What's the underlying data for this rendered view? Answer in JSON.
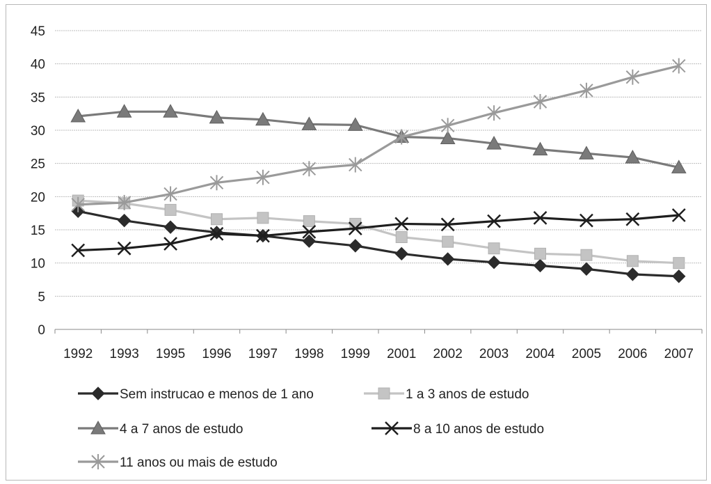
{
  "chart_data": {
    "type": "line",
    "title": "",
    "xlabel": "",
    "ylabel": "",
    "categories": [
      "1992",
      "1993",
      "1995",
      "1996",
      "1997",
      "1998",
      "1999",
      "2001",
      "2002",
      "2003",
      "2004",
      "2005",
      "2006",
      "2007"
    ],
    "ylim": [
      0,
      45
    ],
    "yticks": [
      "0",
      "5",
      "10",
      "15",
      "20",
      "25",
      "30",
      "35",
      "40",
      "45"
    ],
    "grid": true,
    "legend_position": "bottom",
    "series": [
      {
        "name": "Sem instrucao e menos de 1 ano",
        "marker": "diamond",
        "color": "#2b2b2b",
        "values": [
          17.8,
          16.4,
          15.4,
          14.6,
          14.1,
          13.3,
          12.6,
          11.4,
          10.6,
          10.1,
          9.6,
          9.1,
          8.3,
          8.0
        ]
      },
      {
        "name": "1 a 3 anos de estudo",
        "marker": "square",
        "color": "#c4c4c4",
        "values": [
          19.4,
          19.0,
          18.0,
          16.6,
          16.8,
          16.3,
          15.9,
          13.9,
          13.2,
          12.2,
          11.4,
          11.2,
          10.3,
          10.0
        ]
      },
      {
        "name": "4 a 7 anos de estudo",
        "marker": "triangle",
        "color": "#7a7a7a",
        "values": [
          32.1,
          32.8,
          32.8,
          31.9,
          31.6,
          30.9,
          30.8,
          29.0,
          28.8,
          28.0,
          27.1,
          26.5,
          25.9,
          24.4
        ]
      },
      {
        "name": "8 a 10 anos de estudo",
        "marker": "x",
        "color": "#1e1e1e",
        "values": [
          11.9,
          12.2,
          12.9,
          14.4,
          14.1,
          14.7,
          15.2,
          15.9,
          15.8,
          16.3,
          16.8,
          16.4,
          16.6,
          17.2
        ]
      },
      {
        "name": "11 anos ou mais de estudo",
        "marker": "star",
        "color": "#9a9a9a",
        "values": [
          18.8,
          19.1,
          20.4,
          22.1,
          22.9,
          24.2,
          24.8,
          29.0,
          30.7,
          32.6,
          34.3,
          36.0,
          38.0,
          39.7
        ]
      }
    ]
  }
}
